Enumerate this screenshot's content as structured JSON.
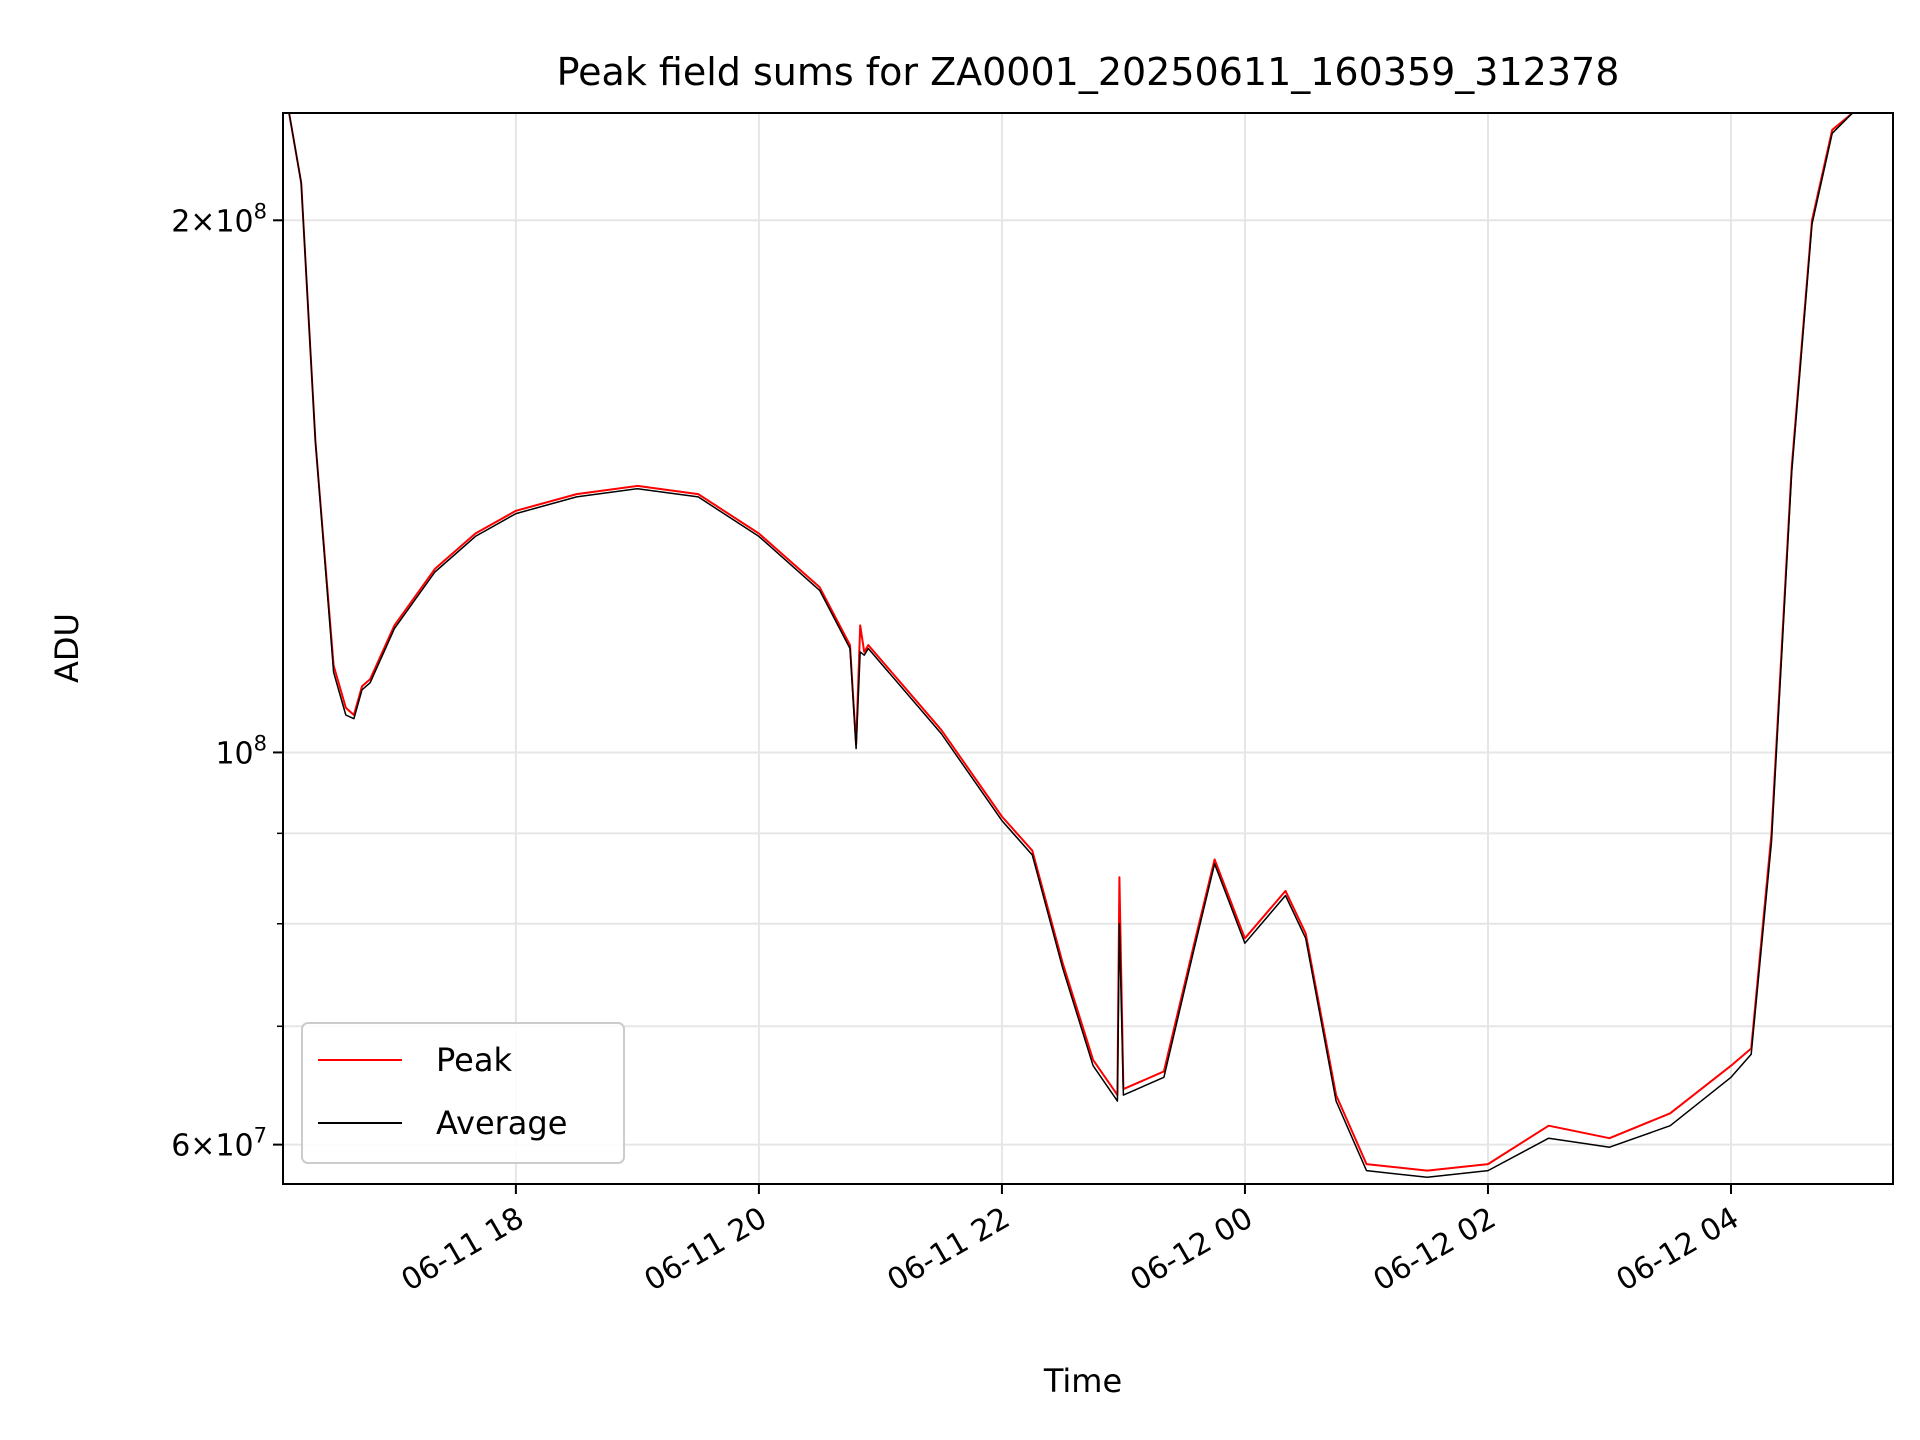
{
  "chart_data": {
    "type": "line",
    "title": "Peak field sums for ZA0001_20250611_160359_312378",
    "xlabel": "Time",
    "ylabel": "ADU",
    "y_scale": "log",
    "xlim": [
      "2025-06-11 16:05",
      "2025-06-12 05:20"
    ],
    "ylim": [
      57000000,
      230000000
    ],
    "grid": true,
    "legend_position": "lower-left",
    "x_ticks": [
      "06-11 18",
      "06-11 20",
      "06-11 22",
      "06-12 00",
      "06-12 02",
      "06-12 04"
    ],
    "y_ticks": [
      {
        "value": 60000000,
        "mantissa": "6",
        "exponent": "7"
      },
      {
        "value": 100000000,
        "mantissa": "",
        "exponent": "8"
      },
      {
        "value": 200000000,
        "mantissa": "2",
        "exponent": "8"
      }
    ],
    "y_minor_ticks": [
      70000000,
      80000000,
      90000000
    ],
    "series": [
      {
        "name": "Peak",
        "color": "#ff0000",
        "x": [
          "2025-06-11 16:08",
          "2025-06-11 16:14",
          "2025-06-11 16:21",
          "2025-06-11 16:30",
          "2025-06-11 16:36",
          "2025-06-11 16:40",
          "2025-06-11 16:44",
          "2025-06-11 16:48",
          "2025-06-11 17:00",
          "2025-06-11 17:20",
          "2025-06-11 17:40",
          "2025-06-11 18:00",
          "2025-06-11 18:30",
          "2025-06-11 19:00",
          "2025-06-11 19:30",
          "2025-06-11 20:00",
          "2025-06-11 20:30",
          "2025-06-11 20:45",
          "2025-06-11 20:48",
          "2025-06-11 20:50",
          "2025-06-11 20:52",
          "2025-06-11 20:54",
          "2025-06-11 21:30",
          "2025-06-11 22:00",
          "2025-06-11 22:15",
          "2025-06-11 22:30",
          "2025-06-11 22:45",
          "2025-06-11 22:55",
          "2025-06-11 22:57",
          "2025-06-11 22:58",
          "2025-06-11 23:00",
          "2025-06-11 23:20",
          "2025-06-11 23:35",
          "2025-06-11 23:45",
          "2025-06-12 00:00",
          "2025-06-12 00:20",
          "2025-06-12 00:30",
          "2025-06-12 00:45",
          "2025-06-12 01:00",
          "2025-06-12 01:30",
          "2025-06-12 02:00",
          "2025-06-12 02:30",
          "2025-06-12 03:00",
          "2025-06-12 03:30",
          "2025-06-12 04:00",
          "2025-06-12 04:10",
          "2025-06-12 04:20",
          "2025-06-12 04:30",
          "2025-06-12 04:40",
          "2025-06-12 04:50",
          "2025-06-12 05:00",
          "2025-06-12 05:20"
        ],
        "y": [
          230000000,
          210000000,
          150000000,
          112000000,
          106000000,
          105000000,
          109000000,
          110000000,
          118000000,
          127000000,
          133000000,
          137000000,
          140000000,
          141500000,
          140000000,
          133000000,
          124000000,
          115000000,
          101000000,
          118000000,
          114000000,
          115000000,
          103000000,
          92000000,
          88000000,
          76000000,
          67000000,
          64500000,
          64000000,
          85000000,
          64500000,
          66000000,
          78000000,
          87000000,
          78500000,
          83500000,
          79000000,
          64000000,
          58500000,
          58000000,
          58500000,
          61500000,
          60500000,
          62500000,
          66500000,
          68000000,
          90000000,
          145000000,
          200000000,
          225000000,
          230000000,
          230000000
        ]
      },
      {
        "name": "Average",
        "color": "#000000",
        "x": [
          "2025-06-11 16:08",
          "2025-06-11 16:14",
          "2025-06-11 16:21",
          "2025-06-11 16:30",
          "2025-06-11 16:36",
          "2025-06-11 16:40",
          "2025-06-11 16:44",
          "2025-06-11 16:48",
          "2025-06-11 17:00",
          "2025-06-11 17:20",
          "2025-06-11 17:40",
          "2025-06-11 18:00",
          "2025-06-11 18:30",
          "2025-06-11 19:00",
          "2025-06-11 19:30",
          "2025-06-11 20:00",
          "2025-06-11 20:30",
          "2025-06-11 20:45",
          "2025-06-11 20:48",
          "2025-06-11 20:50",
          "2025-06-11 20:52",
          "2025-06-11 20:54",
          "2025-06-11 21:30",
          "2025-06-11 22:00",
          "2025-06-11 22:15",
          "2025-06-11 22:30",
          "2025-06-11 22:45",
          "2025-06-11 22:55",
          "2025-06-11 22:57",
          "2025-06-11 22:58",
          "2025-06-11 23:00",
          "2025-06-11 23:20",
          "2025-06-11 23:35",
          "2025-06-11 23:45",
          "2025-06-12 00:00",
          "2025-06-12 00:20",
          "2025-06-12 00:30",
          "2025-06-12 00:45",
          "2025-06-12 01:00",
          "2025-06-12 01:30",
          "2025-06-12 02:00",
          "2025-06-12 02:30",
          "2025-06-12 03:00",
          "2025-06-12 03:30",
          "2025-06-12 04:00",
          "2025-06-12 04:10",
          "2025-06-12 04:20",
          "2025-06-12 04:30",
          "2025-06-12 04:40",
          "2025-06-12 04:50",
          "2025-06-12 05:00",
          "2025-06-12 05:20"
        ],
        "y": [
          230000000,
          210000000,
          150000000,
          111000000,
          105000000,
          104500000,
          108500000,
          109500000,
          117500000,
          126500000,
          132500000,
          136500000,
          139500000,
          141000000,
          139500000,
          132500000,
          123500000,
          114500000,
          100500000,
          114000000,
          113500000,
          114500000,
          102500000,
          91500000,
          87500000,
          75500000,
          66500000,
          64000000,
          63500000,
          80000000,
          64000000,
          65500000,
          77500000,
          86500000,
          78000000,
          83000000,
          78500000,
          63500000,
          58000000,
          57500000,
          58000000,
          60500000,
          59800000,
          61500000,
          65500000,
          67500000,
          89000000,
          144000000,
          199000000,
          224000000,
          230000000,
          230000000
        ]
      }
    ]
  }
}
